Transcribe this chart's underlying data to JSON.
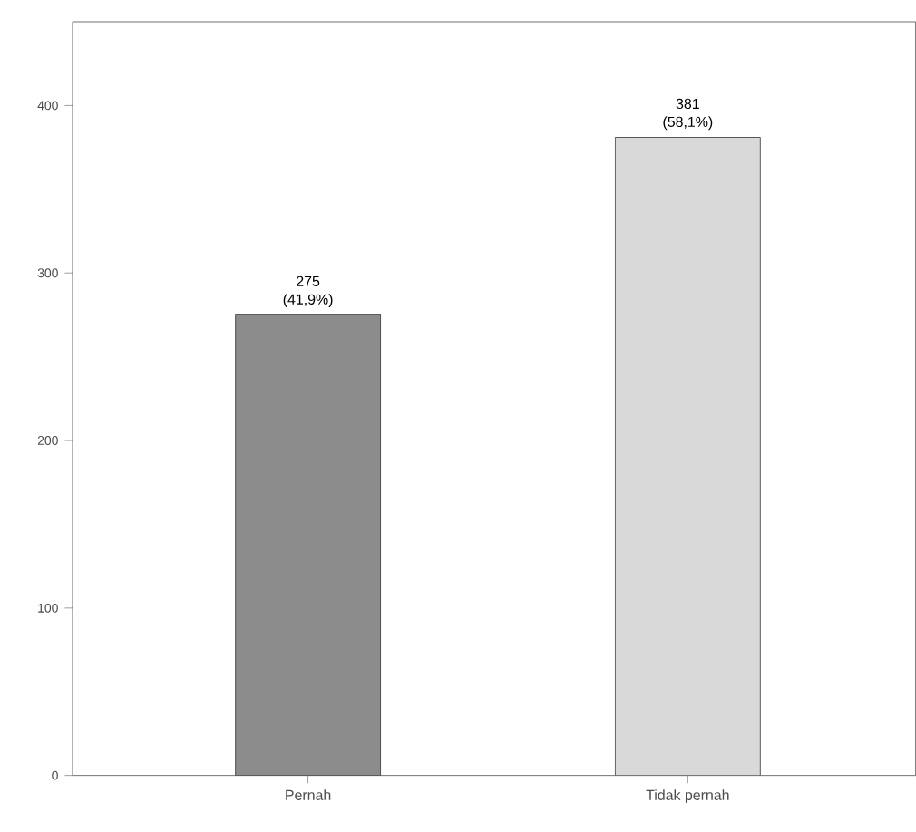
{
  "chart_data": {
    "type": "bar",
    "categories": [
      "Pernah",
      "Tidak pernah"
    ],
    "values": [
      275,
      381
    ],
    "colors": [
      "#8c8c8c",
      "#d9d9d9"
    ],
    "value_labels": [
      "275 (41,9%)",
      "381 (58,1%)"
    ],
    "ylim": [
      0,
      450
    ],
    "yticks": [
      0,
      100,
      200,
      300,
      400
    ],
    "grid": false
  }
}
